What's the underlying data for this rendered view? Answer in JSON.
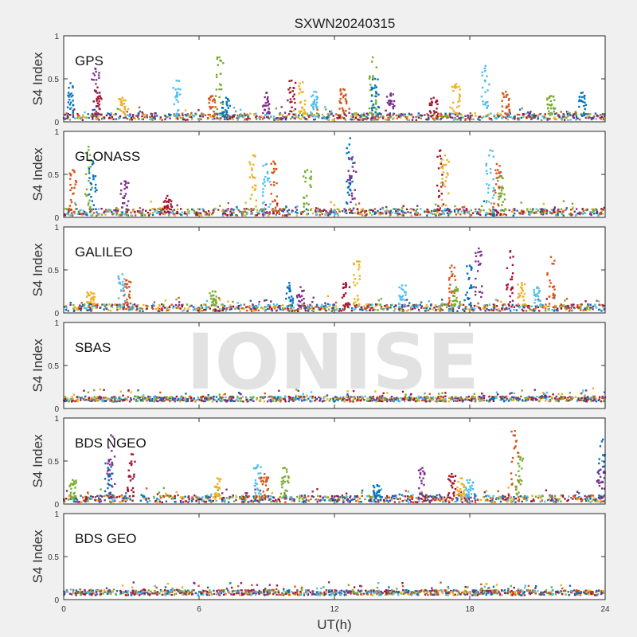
{
  "chart_data": {
    "type": "scatter",
    "title": "SXWN20240315",
    "xlabel": "UT(h)",
    "ylabel": "S4 Index",
    "xlim": [
      0,
      24
    ],
    "ylim": [
      0,
      1
    ],
    "xticks": [
      0,
      6,
      12,
      18,
      24
    ],
    "yticks": [
      0,
      0.5,
      1
    ],
    "watermark": "IONISE",
    "series_colors": [
      "#0072bd",
      "#d95319",
      "#edb120",
      "#7e2f8e",
      "#77ac30",
      "#4dbeee",
      "#a2142f"
    ],
    "panels": [
      {
        "label": "GPS",
        "baseline": 0.06,
        "spikes": [
          [
            0.3,
            0.45
          ],
          [
            1.4,
            0.62
          ],
          [
            1.5,
            0.4
          ],
          [
            2.6,
            0.28
          ],
          [
            5.0,
            0.48
          ],
          [
            6.6,
            0.3
          ],
          [
            6.9,
            0.75
          ],
          [
            7.2,
            0.28
          ],
          [
            9.0,
            0.34
          ],
          [
            10.1,
            0.48
          ],
          [
            10.6,
            0.46
          ],
          [
            11.1,
            0.35
          ],
          [
            12.4,
            0.38
          ],
          [
            13.7,
            0.75
          ],
          [
            13.8,
            0.5
          ],
          [
            14.5,
            0.33
          ],
          [
            16.4,
            0.28
          ],
          [
            17.4,
            0.44
          ],
          [
            18.7,
            0.65
          ],
          [
            19.6,
            0.35
          ],
          [
            21.6,
            0.3
          ],
          [
            23.0,
            0.34
          ]
        ]
      },
      {
        "label": "GLONASS",
        "baseline": 0.06,
        "spikes": [
          [
            0.4,
            0.55
          ],
          [
            1.1,
            0.82
          ],
          [
            1.3,
            0.65
          ],
          [
            2.7,
            0.42
          ],
          [
            4.6,
            0.25
          ],
          [
            8.4,
            0.72
          ],
          [
            9.0,
            0.62
          ],
          [
            9.3,
            0.65
          ],
          [
            10.8,
            0.55
          ],
          [
            12.7,
            0.92
          ],
          [
            12.8,
            0.7
          ],
          [
            16.7,
            0.78
          ],
          [
            16.9,
            0.72
          ],
          [
            18.9,
            0.78
          ],
          [
            19.2,
            0.62
          ],
          [
            19.4,
            0.48
          ]
        ]
      },
      {
        "label": "GALILEO",
        "baseline": 0.06,
        "spikes": [
          [
            1.2,
            0.24
          ],
          [
            2.6,
            0.45
          ],
          [
            2.8,
            0.38
          ],
          [
            6.6,
            0.25
          ],
          [
            10.0,
            0.35
          ],
          [
            10.5,
            0.3
          ],
          [
            12.5,
            0.35
          ],
          [
            13.0,
            0.6
          ],
          [
            15.0,
            0.32
          ],
          [
            17.2,
            0.55
          ],
          [
            17.4,
            0.3
          ],
          [
            18.0,
            0.55
          ],
          [
            18.4,
            0.75
          ],
          [
            19.8,
            0.72
          ],
          [
            20.3,
            0.35
          ],
          [
            21.0,
            0.3
          ],
          [
            21.6,
            0.65
          ]
        ]
      },
      {
        "label": "SBAS",
        "baseline": 0.11,
        "spikes": []
      },
      {
        "label": "BDS NGEO",
        "baseline": 0.06,
        "spikes": [
          [
            0.4,
            0.28
          ],
          [
            2.0,
            0.5
          ],
          [
            2.1,
            0.8
          ],
          [
            3.0,
            0.58
          ],
          [
            6.8,
            0.3
          ],
          [
            8.6,
            0.45
          ],
          [
            8.9,
            0.35
          ],
          [
            9.8,
            0.42
          ],
          [
            13.9,
            0.22
          ],
          [
            15.9,
            0.42
          ],
          [
            17.2,
            0.35
          ],
          [
            17.6,
            0.3
          ],
          [
            18.0,
            0.28
          ],
          [
            20.0,
            0.85
          ],
          [
            20.2,
            0.55
          ],
          [
            23.9,
            0.75
          ],
          [
            23.8,
            0.4
          ]
        ]
      },
      {
        "label": "BDS GEO",
        "baseline": 0.08,
        "spikes": []
      }
    ]
  }
}
